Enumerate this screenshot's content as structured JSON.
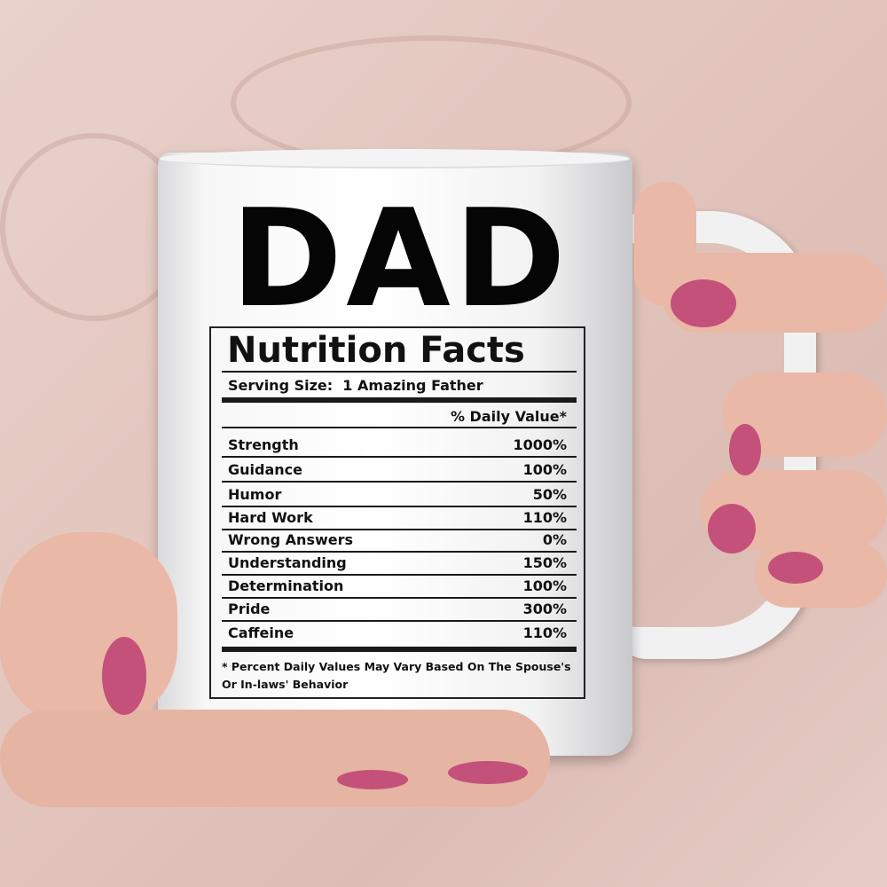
{
  "mug": {
    "title": "DAD",
    "subtitle": "Nutrition Facts",
    "serving_size": "Serving Size:  1 Amazing Father",
    "daily_value_header": "% Daily Value*",
    "rows": [
      {
        "name": "Strength",
        "value": "1000%"
      },
      {
        "name": "Guidance",
        "value": "100%"
      },
      {
        "name": "Humor",
        "value": "50%"
      },
      {
        "name": "Hard Work",
        "value": "110%"
      },
      {
        "name": "Wrong Answers",
        "value": "0%"
      },
      {
        "name": "Understanding",
        "value": "150%"
      },
      {
        "name": "Determination",
        "value": "100%"
      },
      {
        "name": "Pride",
        "value": "300%"
      },
      {
        "name": "Caffeine",
        "value": "110%"
      }
    ],
    "footnote_line1": "* Percent Daily Values May Vary Based On The Spouse's",
    "footnote_line2": "Or In-laws' Behavior"
  },
  "colors": {
    "background": "#e6cdc6",
    "mug": "#ffffff",
    "text": "#111111",
    "nail_polish": "#c4517a",
    "skin": "#e9b8a6"
  }
}
